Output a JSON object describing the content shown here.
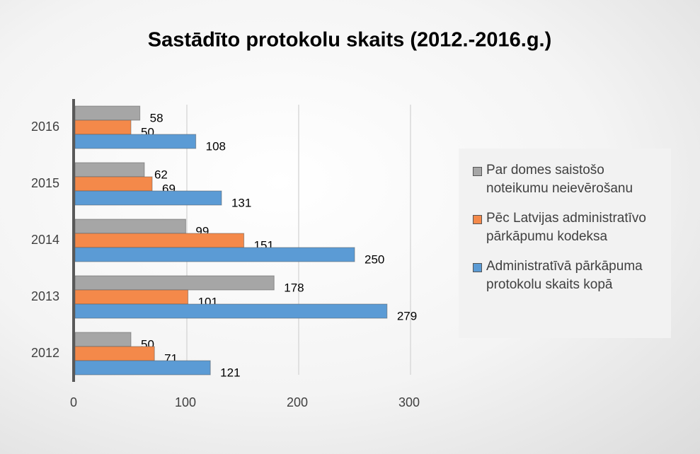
{
  "chart_data": {
    "type": "hbar",
    "title": "Sastādīto protokolu skaits (2012.-2016.g.)",
    "categories": [
      "2012",
      "2013",
      "2014",
      "2015",
      "2016"
    ],
    "series": [
      {
        "name": "Par domes saistošo noteikumu neievērošanu",
        "color": "#a6a6a6",
        "values": [
          50,
          178,
          99,
          62,
          58
        ]
      },
      {
        "name": "Pēc Latvijas administratīvo pārkāpumu kodeksa",
        "color": "#f4894a",
        "values": [
          71,
          101,
          151,
          69,
          50
        ]
      },
      {
        "name": "Administratīvā pārkāpuma protokolu skaits kopā",
        "color": "#5b9bd5",
        "values": [
          121,
          279,
          250,
          131,
          108
        ]
      }
    ],
    "xlim": [
      0,
      300
    ],
    "xticks": [
      0,
      100,
      200,
      300
    ],
    "grid": true,
    "legend": "right"
  }
}
